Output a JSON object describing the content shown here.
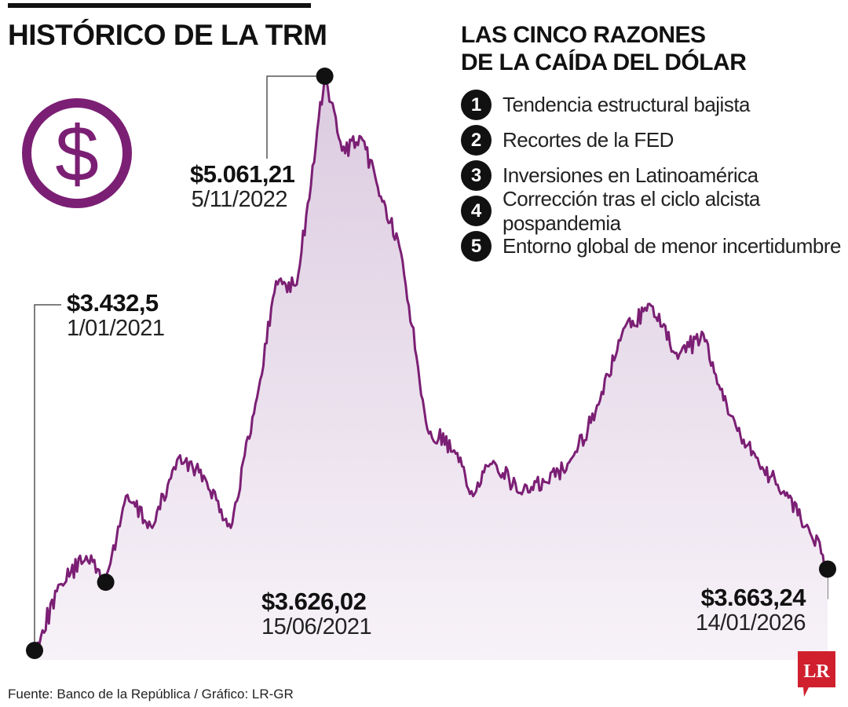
{
  "header": {
    "title": "HISTÓRICO DE LA TRM"
  },
  "icon": {
    "name": "dollar-circle-icon",
    "color": "#7b1f74"
  },
  "colors": {
    "line": "#7b1f74",
    "area_top": "#dccbe0",
    "area_bottom": "#f7f2f8",
    "marker": "#111111"
  },
  "reasons": {
    "title_line1": "LAS CINCO RAZONES",
    "title_line2": "DE LA CAÍDA DEL DÓLAR",
    "items": [
      {
        "num": "1",
        "text": "Tendencia estructural bajista"
      },
      {
        "num": "2",
        "text": "Recortes de la FED"
      },
      {
        "num": "3",
        "text": "Inversiones en Latinoamérica"
      },
      {
        "num": "4",
        "text": "Corrección tras el ciclo alcista pospandemia"
      },
      {
        "num": "5",
        "text": "Entorno global de menor incertidumbre"
      }
    ]
  },
  "annotations": [
    {
      "value": "$3.432,5",
      "date": "1/01/2021"
    },
    {
      "value": "$3.626,02",
      "date": "15/06/2021"
    },
    {
      "value": "$5.061,21",
      "date": "5/11/2022"
    },
    {
      "value": "$3.663,24",
      "date": "14/01/2026"
    }
  ],
  "footer": {
    "source": "Fuente: Banco de la República / Gráfico: LR-GR"
  },
  "logo": {
    "text": "LR",
    "color": "#d0202e"
  },
  "chart_data": {
    "type": "area",
    "title": "HISTÓRICO DE LA TRM",
    "xlabel": "",
    "ylabel": "",
    "grid": false,
    "ylim": [
      3432.5,
      5061.21
    ],
    "x": [
      "2021-01-01",
      "2021-03-01",
      "2021-05-01",
      "2021-06-15",
      "2021-08-01",
      "2021-10-01",
      "2021-12-01",
      "2022-02-01",
      "2022-04-01",
      "2022-06-01",
      "2022-07-15",
      "2022-09-01",
      "2022-10-15",
      "2022-11-05",
      "2022-12-15",
      "2023-02-01",
      "2023-03-15",
      "2023-05-01",
      "2023-07-01",
      "2023-09-01",
      "2023-10-15",
      "2023-12-01",
      "2024-02-01",
      "2024-04-01",
      "2024-06-01",
      "2024-08-01",
      "2024-10-01",
      "2024-12-01",
      "2025-02-01",
      "2025-04-01",
      "2025-06-01",
      "2025-08-01",
      "2025-10-01",
      "2025-12-01",
      "2026-01-14"
    ],
    "values": [
      3432.5,
      3620,
      3700,
      3626.02,
      3870,
      3780,
      3980,
      3920,
      3780,
      4150,
      4480,
      4470,
      4860,
      5061.21,
      4850,
      4880,
      4720,
      4560,
      4060,
      4000,
      3870,
      3970,
      3880,
      3910,
      3980,
      4130,
      4350,
      4410,
      4260,
      4330,
      4100,
      3980,
      3880,
      3780,
      3663.24
    ]
  }
}
